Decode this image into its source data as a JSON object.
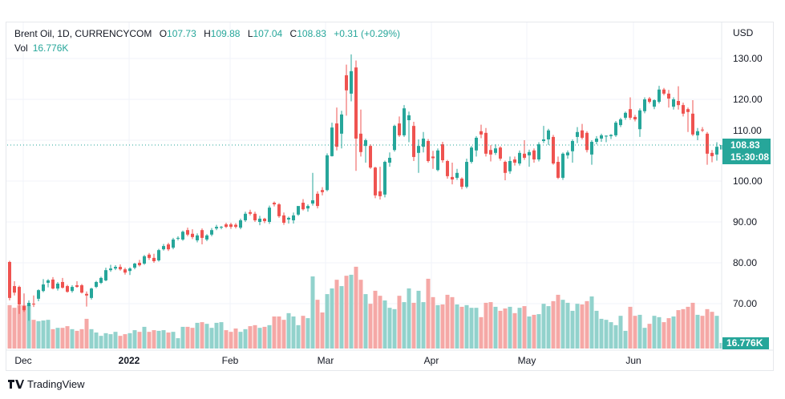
{
  "header": {
    "symbol": "Brent Oil, 1D, CURRENCYCOM",
    "o_label": "O",
    "o": "107.73",
    "h_label": "H",
    "h": "109.88",
    "l_label": "L",
    "l": "107.04",
    "c_label": "C",
    "c": "108.83",
    "change": "+0.31 (+0.29%)",
    "vol_label": "Vol",
    "vol": "16.776K"
  },
  "currency": "USD",
  "last_price_badge": {
    "price": "108.83",
    "countdown": "15:30:08"
  },
  "volume_badge": "16.776K",
  "branding": "TradingView",
  "colors": {
    "up": "#26a69a",
    "down": "#ef5350",
    "up_vol": "#92d2cc",
    "down_vol": "#f5a8a6",
    "grid": "#f0f3fa"
  },
  "chart_data": {
    "type": "candlestick",
    "title": "Brent Oil, 1D, CURRENCYCOM",
    "ylabel": "USD",
    "ylim": [
      59,
      134
    ],
    "grid": true,
    "y_ticks": [
      "130.00",
      "120.00",
      "110.00",
      "100.00",
      "90.00",
      "80.00",
      "70.00"
    ],
    "x_ticks": [
      "Dec",
      "2022",
      "Feb",
      "Mar",
      "Apr",
      "May",
      "Jun"
    ],
    "candles_ohlc": [
      [
        80.2,
        80.5,
        70.8,
        71.4
      ],
      [
        74.3,
        75.5,
        72.0,
        72.7
      ],
      [
        74.1,
        74.4,
        67.5,
        69.8
      ],
      [
        69.4,
        72.5,
        68.0,
        68.4
      ],
      [
        69.4,
        70.8,
        65.8,
        70.2
      ],
      [
        70.0,
        72.0,
        69.2,
        69.8
      ],
      [
        71.2,
        73.5,
        70.6,
        73.3
      ],
      [
        73.1,
        76.0,
        72.8,
        74.7
      ],
      [
        75.1,
        76.0,
        74.0,
        75.7
      ],
      [
        75.9,
        76.5,
        73.5,
        73.7
      ],
      [
        73.7,
        75.3,
        73.2,
        74.9
      ],
      [
        75.3,
        76.3,
        73.7,
        73.9
      ],
      [
        74.3,
        74.6,
        72.7,
        72.9
      ],
      [
        73.1,
        74.5,
        72.7,
        74.1
      ],
      [
        74.5,
        75.5,
        73.9,
        74.1
      ],
      [
        74.5,
        74.8,
        72.5,
        72.7
      ],
      [
        72.4,
        73.0,
        69.3,
        72.0
      ],
      [
        71.4,
        73.9,
        71.0,
        73.7
      ],
      [
        74.1,
        75.6,
        73.8,
        75.3
      ],
      [
        75.1,
        76.6,
        74.8,
        76.3
      ],
      [
        75.7,
        78.8,
        75.5,
        78.2
      ],
      [
        78.2,
        79.5,
        77.8,
        78.6
      ],
      [
        78.6,
        79.4,
        78.2,
        79.0
      ],
      [
        79.0,
        79.6,
        78.1,
        78.4
      ],
      [
        78.4,
        78.8,
        77.1,
        77.6
      ],
      [
        78.0,
        78.9,
        77.0,
        78.6
      ],
      [
        78.8,
        80.0,
        78.4,
        79.8
      ],
      [
        80.0,
        80.7,
        79.1,
        79.4
      ],
      [
        79.8,
        81.9,
        79.5,
        81.6
      ],
      [
        82.0,
        82.4,
        80.7,
        81.2
      ],
      [
        81.2,
        82.2,
        80.0,
        80.4
      ],
      [
        80.6,
        83.4,
        80.3,
        83.1
      ],
      [
        83.3,
        84.6,
        83.0,
        84.1
      ],
      [
        84.5,
        84.9,
        82.9,
        83.3
      ],
      [
        83.7,
        86.1,
        83.3,
        85.7
      ],
      [
        85.9,
        86.5,
        85.5,
        86.1
      ],
      [
        85.7,
        87.9,
        85.4,
        87.6
      ],
      [
        88.0,
        88.6,
        86.5,
        86.9
      ],
      [
        87.1,
        88.2,
        85.8,
        86.3
      ],
      [
        85.5,
        87.2,
        85.0,
        86.7
      ],
      [
        88.0,
        88.4,
        84.5,
        86.1
      ],
      [
        85.7,
        87.0,
        85.3,
        86.7
      ],
      [
        86.9,
        88.5,
        86.5,
        88.0
      ],
      [
        88.4,
        89.3,
        88.0,
        88.8
      ],
      [
        88.6,
        89.0,
        88.2,
        88.8
      ],
      [
        89.4,
        89.8,
        88.5,
        88.8
      ],
      [
        89.4,
        89.8,
        88.3,
        88.8
      ],
      [
        89.3,
        89.7,
        88.4,
        88.8
      ],
      [
        88.6,
        90.8,
        88.2,
        90.4
      ],
      [
        90.4,
        92.5,
        90.0,
        92.0
      ],
      [
        92.4,
        93.0,
        91.6,
        92.0
      ],
      [
        92.0,
        92.5,
        90.0,
        90.4
      ],
      [
        90.0,
        91.5,
        89.2,
        90.8
      ],
      [
        90.8,
        91.0,
        89.7,
        90.2
      ],
      [
        90.0,
        94.0,
        89.5,
        93.5
      ],
      [
        94.7,
        95.0,
        93.8,
        94.3
      ],
      [
        94.3,
        94.6,
        91.0,
        91.4
      ],
      [
        91.6,
        92.3,
        89.3,
        89.8
      ],
      [
        90.6,
        91.3,
        89.6,
        91.0
      ],
      [
        90.4,
        92.3,
        89.6,
        91.6
      ],
      [
        91.8,
        93.5,
        91.5,
        93.9
      ],
      [
        94.7,
        95.6,
        92.8,
        93.1
      ],
      [
        93.3,
        94.3,
        92.5,
        93.9
      ],
      [
        94.5,
        102.0,
        94.0,
        95.3
      ],
      [
        96.9,
        97.5,
        93.3,
        93.9
      ],
      [
        97.8,
        98.5,
        96.5,
        97.3
      ],
      [
        97.8,
        106.8,
        97.5,
        106.3
      ],
      [
        106.1,
        114.3,
        106.0,
        113.1
      ],
      [
        114.1,
        118.0,
        107.5,
        108.4
      ],
      [
        111.6,
        117.2,
        108.0,
        116.3
      ],
      [
        125.9,
        128.5,
        116.0,
        122.2
      ],
      [
        121.4,
        131.0,
        119.5,
        126.9
      ],
      [
        127.8,
        129.5,
        102.5,
        110.4
      ],
      [
        111.6,
        117.5,
        106.0,
        107.1
      ],
      [
        108.6,
        110.4,
        104.5,
        110.0
      ],
      [
        108.6,
        109.0,
        103.0,
        103.3
      ],
      [
        103.3,
        103.5,
        95.8,
        96.5
      ],
      [
        97.5,
        103.5,
        95.5,
        96.3
      ],
      [
        96.7,
        105.0,
        96.0,
        104.7
      ],
      [
        104.5,
        107.0,
        103.5,
        105.7
      ],
      [
        107.6,
        113.8,
        107.2,
        113.5
      ],
      [
        114.1,
        115.8,
        110.8,
        111.2
      ],
      [
        111.2,
        118.6,
        110.8,
        117.8
      ],
      [
        114.9,
        117.0,
        109.5,
        116.1
      ],
      [
        113.5,
        114.5,
        104.9,
        105.9
      ],
      [
        106.9,
        110.2,
        102.0,
        108.6
      ],
      [
        108.4,
        112.0,
        107.0,
        110.4
      ],
      [
        109.8,
        110.3,
        104.5,
        104.9
      ],
      [
        106.0,
        107.4,
        103.0,
        105.6
      ],
      [
        102.7,
        108.0,
        102.4,
        107.5
      ],
      [
        109.0,
        109.6,
        104.5,
        105.1
      ],
      [
        104.9,
        105.2,
        100.6,
        101.2
      ],
      [
        101.0,
        104.5,
        99.2,
        100.4
      ],
      [
        100.8,
        103.0,
        100.3,
        102.0
      ],
      [
        100.6,
        100.9,
        98.0,
        98.6
      ],
      [
        98.6,
        105.5,
        98.2,
        104.7
      ],
      [
        104.7,
        108.6,
        104.3,
        108.2
      ],
      [
        107.5,
        111.0,
        106.0,
        110.6
      ],
      [
        112.2,
        113.8,
        110.5,
        111.4
      ],
      [
        111.8,
        113.0,
        106.0,
        106.7
      ],
      [
        107.6,
        108.8,
        104.8,
        106.5
      ],
      [
        106.9,
        109.0,
        106.4,
        108.0
      ],
      [
        108.2,
        108.5,
        105.0,
        105.5
      ],
      [
        104.7,
        105.0,
        100.2,
        102.0
      ],
      [
        102.4,
        106.0,
        101.8,
        104.9
      ],
      [
        105.3,
        106.0,
        103.8,
        104.5
      ],
      [
        104.3,
        107.5,
        103.8,
        106.9
      ],
      [
        106.7,
        110.0,
        105.2,
        105.7
      ],
      [
        106.3,
        107.7,
        103.5,
        107.1
      ],
      [
        107.5,
        108.0,
        104.5,
        105.3
      ],
      [
        105.3,
        109.5,
        104.8,
        109.0
      ],
      [
        109.8,
        113.5,
        109.3,
        110.2
      ],
      [
        110.2,
        112.8,
        108.8,
        112.4
      ],
      [
        110.8,
        111.3,
        104.0,
        104.3
      ],
      [
        104.7,
        106.0,
        100.5,
        100.8
      ],
      [
        100.8,
        107.0,
        100.3,
        106.7
      ],
      [
        106.3,
        107.5,
        105.5,
        107.0
      ],
      [
        107.3,
        110.2,
        104.5,
        109.8
      ],
      [
        110.8,
        113.2,
        109.3,
        112.0
      ],
      [
        112.4,
        114.0,
        110.2,
        110.6
      ],
      [
        111.8,
        112.2,
        107.0,
        107.6
      ],
      [
        106.5,
        110.0,
        104.0,
        109.6
      ],
      [
        109.6,
        111.0,
        109.0,
        110.4
      ],
      [
        110.4,
        111.6,
        109.6,
        111.2
      ],
      [
        110.9,
        111.2,
        109.5,
        111.1
      ],
      [
        111.0,
        111.5,
        110.3,
        111.3
      ],
      [
        111.2,
        114.7,
        110.8,
        114.3
      ],
      [
        113.7,
        115.5,
        113.2,
        115.1
      ],
      [
        115.5,
        117.0,
        115.0,
        116.7
      ],
      [
        117.6,
        120.5,
        115.0,
        115.5
      ],
      [
        115.7,
        116.2,
        114.6,
        115.1
      ],
      [
        112.7,
        117.8,
        110.8,
        117.3
      ],
      [
        117.1,
        120.5,
        116.6,
        120.0
      ],
      [
        120.2,
        120.6,
        119.0,
        119.4
      ],
      [
        118.2,
        120.0,
        117.6,
        119.8
      ],
      [
        119.4,
        123.3,
        119.0,
        122.4
      ],
      [
        122.4,
        122.8,
        121.0,
        121.4
      ],
      [
        121.4,
        122.3,
        118.0,
        120.2
      ],
      [
        118.2,
        120.5,
        117.5,
        120.0
      ],
      [
        119.6,
        123.2,
        117.5,
        118.6
      ],
      [
        118.6,
        119.2,
        115.8,
        116.5
      ],
      [
        117.6,
        118.0,
        112.0,
        116.9
      ],
      [
        116.5,
        119.8,
        111.0,
        111.4
      ],
      [
        111.2,
        113.0,
        110.0,
        112.2
      ],
      [
        112.6,
        113.2,
        112.0,
        112.4
      ],
      [
        111.6,
        112.0,
        104.0,
        106.7
      ],
      [
        106.9,
        107.6,
        104.6,
        106.1
      ],
      [
        106.5,
        109.5,
        105.0,
        108.4
      ],
      [
        107.73,
        109.88,
        107.04,
        108.83
      ]
    ],
    "volume_k": [
      130,
      122,
      130,
      130,
      130,
      86,
      82,
      84,
      86,
      58,
      62,
      62,
      67,
      58,
      53,
      58,
      89,
      58,
      48,
      38,
      46,
      43,
      50,
      38,
      43,
      46,
      55,
      50,
      65,
      50,
      55,
      53,
      55,
      48,
      50,
      31,
      65,
      65,
      62,
      77,
      79,
      74,
      62,
      77,
      79,
      55,
      50,
      60,
      50,
      58,
      67,
      70,
      62,
      65,
      70,
      96,
      96,
      86,
      106,
      96,
      70,
      98,
      91,
      216,
      146,
      108,
      163,
      180,
      206,
      187,
      218,
      221,
      245,
      206,
      163,
      134,
      173,
      158,
      144,
      122,
      118,
      158,
      139,
      180,
      137,
      173,
      139,
      209,
      154,
      130,
      132,
      161,
      154,
      132,
      125,
      130,
      122,
      122,
      94,
      137,
      139,
      125,
      113,
      120,
      125,
      106,
      122,
      127,
      96,
      101,
      103,
      134,
      127,
      142,
      161,
      146,
      137,
      113,
      134,
      132,
      142,
      156,
      113,
      89,
      86,
      79,
      70,
      98,
      53,
      125,
      98,
      101,
      62,
      74,
      98,
      94,
      79,
      91,
      96,
      115,
      118,
      125,
      137,
      101,
      98,
      118,
      110,
      98,
      16.776
    ],
    "last_close": 108.83
  }
}
